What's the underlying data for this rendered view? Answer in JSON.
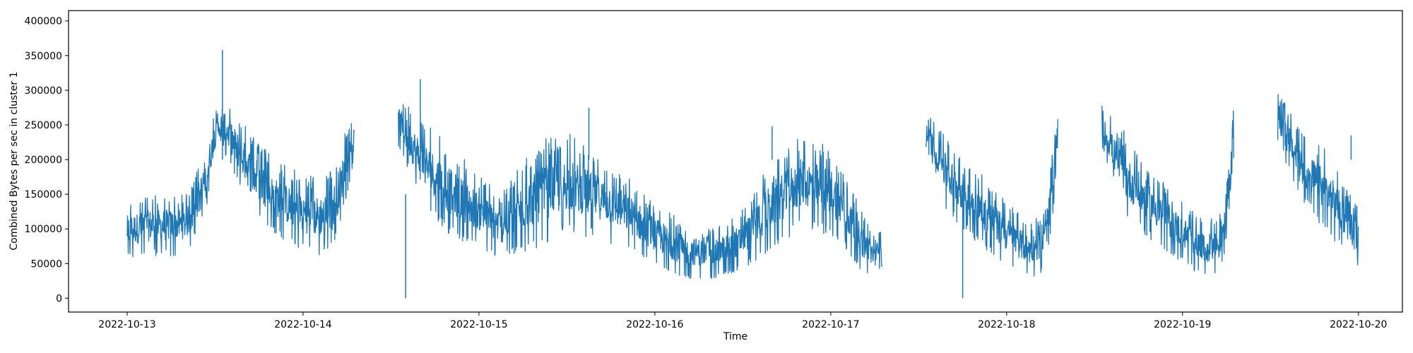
{
  "chart_data": {
    "type": "line",
    "title": "",
    "xlabel": "Time",
    "ylabel": "Combined Bytes per sec in cluster 1",
    "x_range": [
      "2022-10-12T16:00",
      "2022-10-20T06:00"
    ],
    "ylim": [
      -20000,
      415000
    ],
    "y_ticks": [
      0,
      50000,
      100000,
      150000,
      200000,
      250000,
      300000,
      350000,
      400000
    ],
    "x_ticks": [
      "2022-10-13",
      "2022-10-14",
      "2022-10-15",
      "2022-10-16",
      "2022-10-17",
      "2022-10-18",
      "2022-10-19",
      "2022-10-20"
    ],
    "grid": false,
    "legend": "none",
    "series": [
      {
        "color": "#1f77b4",
        "style": "dense-noisy",
        "x": [
          "2022-10-13T00:00",
          "2022-10-13T03:00",
          "2022-10-13T06:00",
          "2022-10-13T07:00",
          "2022-10-13T08:00",
          "2022-10-13T09:00",
          "2022-10-13T10:00",
          "2022-10-13T11:00",
          "2022-10-13T12:00",
          "2022-10-13T13:00",
          null,
          "2022-10-13T13:00",
          "2022-10-13T17:00",
          "2022-10-13T20:00",
          "2022-10-13T23:00",
          "2022-10-14T02:00",
          "2022-10-14T04:00",
          "2022-10-14T05:00",
          "2022-10-14T06:00",
          "2022-10-14T07:00",
          null,
          "2022-10-14T13:00",
          "2022-10-14T16:00",
          "2022-10-14T20:00",
          "2022-10-15T00:00",
          "2022-10-15T03:00",
          "2022-10-15T06:00",
          "2022-10-15T09:00",
          "2022-10-15T12:00",
          "2022-10-15T16:00",
          "2022-10-15T20:00",
          "2022-10-16T00:00",
          "2022-10-16T04:00",
          "2022-10-16T08:00",
          "2022-10-16T12:00",
          "2022-10-16T16:00",
          "2022-10-16T20:00",
          "2022-10-17T00:00",
          "2022-10-17T02:00",
          "2022-10-17T04:00",
          "2022-10-17T06:00",
          "2022-10-17T07:00",
          null,
          "2022-10-17T13:00",
          "2022-10-17T16:00",
          "2022-10-17T20:00",
          "2022-10-18T00:00",
          "2022-10-18T03:00",
          "2022-10-18T05:00",
          "2022-10-18T06:00",
          "2022-10-18T07:00",
          null,
          "2022-10-18T13:00",
          "2022-10-18T16:00",
          "2022-10-18T20:00",
          "2022-10-19T00:00",
          "2022-10-19T03:00",
          "2022-10-19T05:00",
          "2022-10-19T06:00",
          "2022-10-19T07:00",
          null,
          "2022-10-19T13:00",
          "2022-10-19T16:00",
          "2022-10-19T20:00",
          "2022-10-19T23:00",
          "2022-10-20T00:00"
        ],
        "y": [
          90000,
          100000,
          95000,
          100000,
          110000,
          130000,
          160000,
          200000,
          240000,
          250000,
          null,
          250000,
          165000,
          135000,
          110000,
          105000,
          125000,
          160000,
          200000,
          235000,
          null,
          255000,
          190000,
          140000,
          110000,
          95000,
          120000,
          140000,
          160000,
          140000,
          110000,
          70000,
          45000,
          45000,
          70000,
          110000,
          155000,
          145000,
          115000,
          70000,
          45000,
          60000,
          null,
          245000,
          170000,
          120000,
          75000,
          55000,
          70000,
          130000,
          240000,
          null,
          255000,
          175000,
          125000,
          80000,
          55000,
          65000,
          110000,
          220000,
          null,
          265000,
          195000,
          140000,
          85000,
          75000
        ],
        "band_low": [
          55000,
          60000,
          60000,
          62000,
          65000,
          80000,
          100000,
          140000,
          200000,
          230000,
          null,
          215000,
          120000,
          95000,
          70000,
          60000,
          70000,
          100000,
          150000,
          200000,
          null,
          220000,
          140000,
          90000,
          70000,
          55000,
          65000,
          75000,
          90000,
          85000,
          70000,
          45000,
          28000,
          28000,
          40000,
          70000,
          100000,
          90000,
          70000,
          40000,
          30000,
          45000,
          null,
          210000,
          120000,
          80000,
          45000,
          30000,
          35000,
          80000,
          180000,
          null,
          215000,
          120000,
          80000,
          50000,
          30000,
          35000,
          60000,
          170000,
          null,
          225000,
          140000,
          90000,
          55000,
          35000
        ],
        "band_high": [
          140000,
          150000,
          150000,
          152000,
          150000,
          165000,
          200000,
          240000,
          270000,
          280000,
          null,
          290000,
          240000,
          200000,
          185000,
          175000,
          185000,
          220000,
          245000,
          260000,
          null,
          295000,
          260000,
          220000,
          180000,
          150000,
          200000,
          230000,
          240000,
          210000,
          180000,
          140000,
          110000,
          100000,
          130000,
          200000,
          235000,
          220000,
          180000,
          130000,
          90000,
          110000,
          null,
          270000,
          230000,
          185000,
          140000,
          110000,
          120000,
          190000,
          290000,
          null,
          280000,
          235000,
          185000,
          140000,
          110000,
          120000,
          170000,
          280000,
          null,
          300000,
          245000,
          210000,
          150000,
          130000
        ]
      }
    ],
    "spikes": [
      {
        "x": "2022-10-13T13:00",
        "y": 358000
      },
      {
        "x": "2022-10-14T14:00",
        "y": 0
      },
      {
        "x": "2022-10-14T16:00",
        "y": 316000
      },
      {
        "x": "2022-10-15T15:00",
        "y": 275000
      },
      {
        "x": "2022-10-16T16:00",
        "y": 248000
      },
      {
        "x": "2022-10-17T18:00",
        "y": 0
      },
      {
        "x": "2022-10-18T16:00",
        "y": 242000
      },
      {
        "x": "2022-10-19T23:00",
        "y": 235000
      }
    ]
  }
}
